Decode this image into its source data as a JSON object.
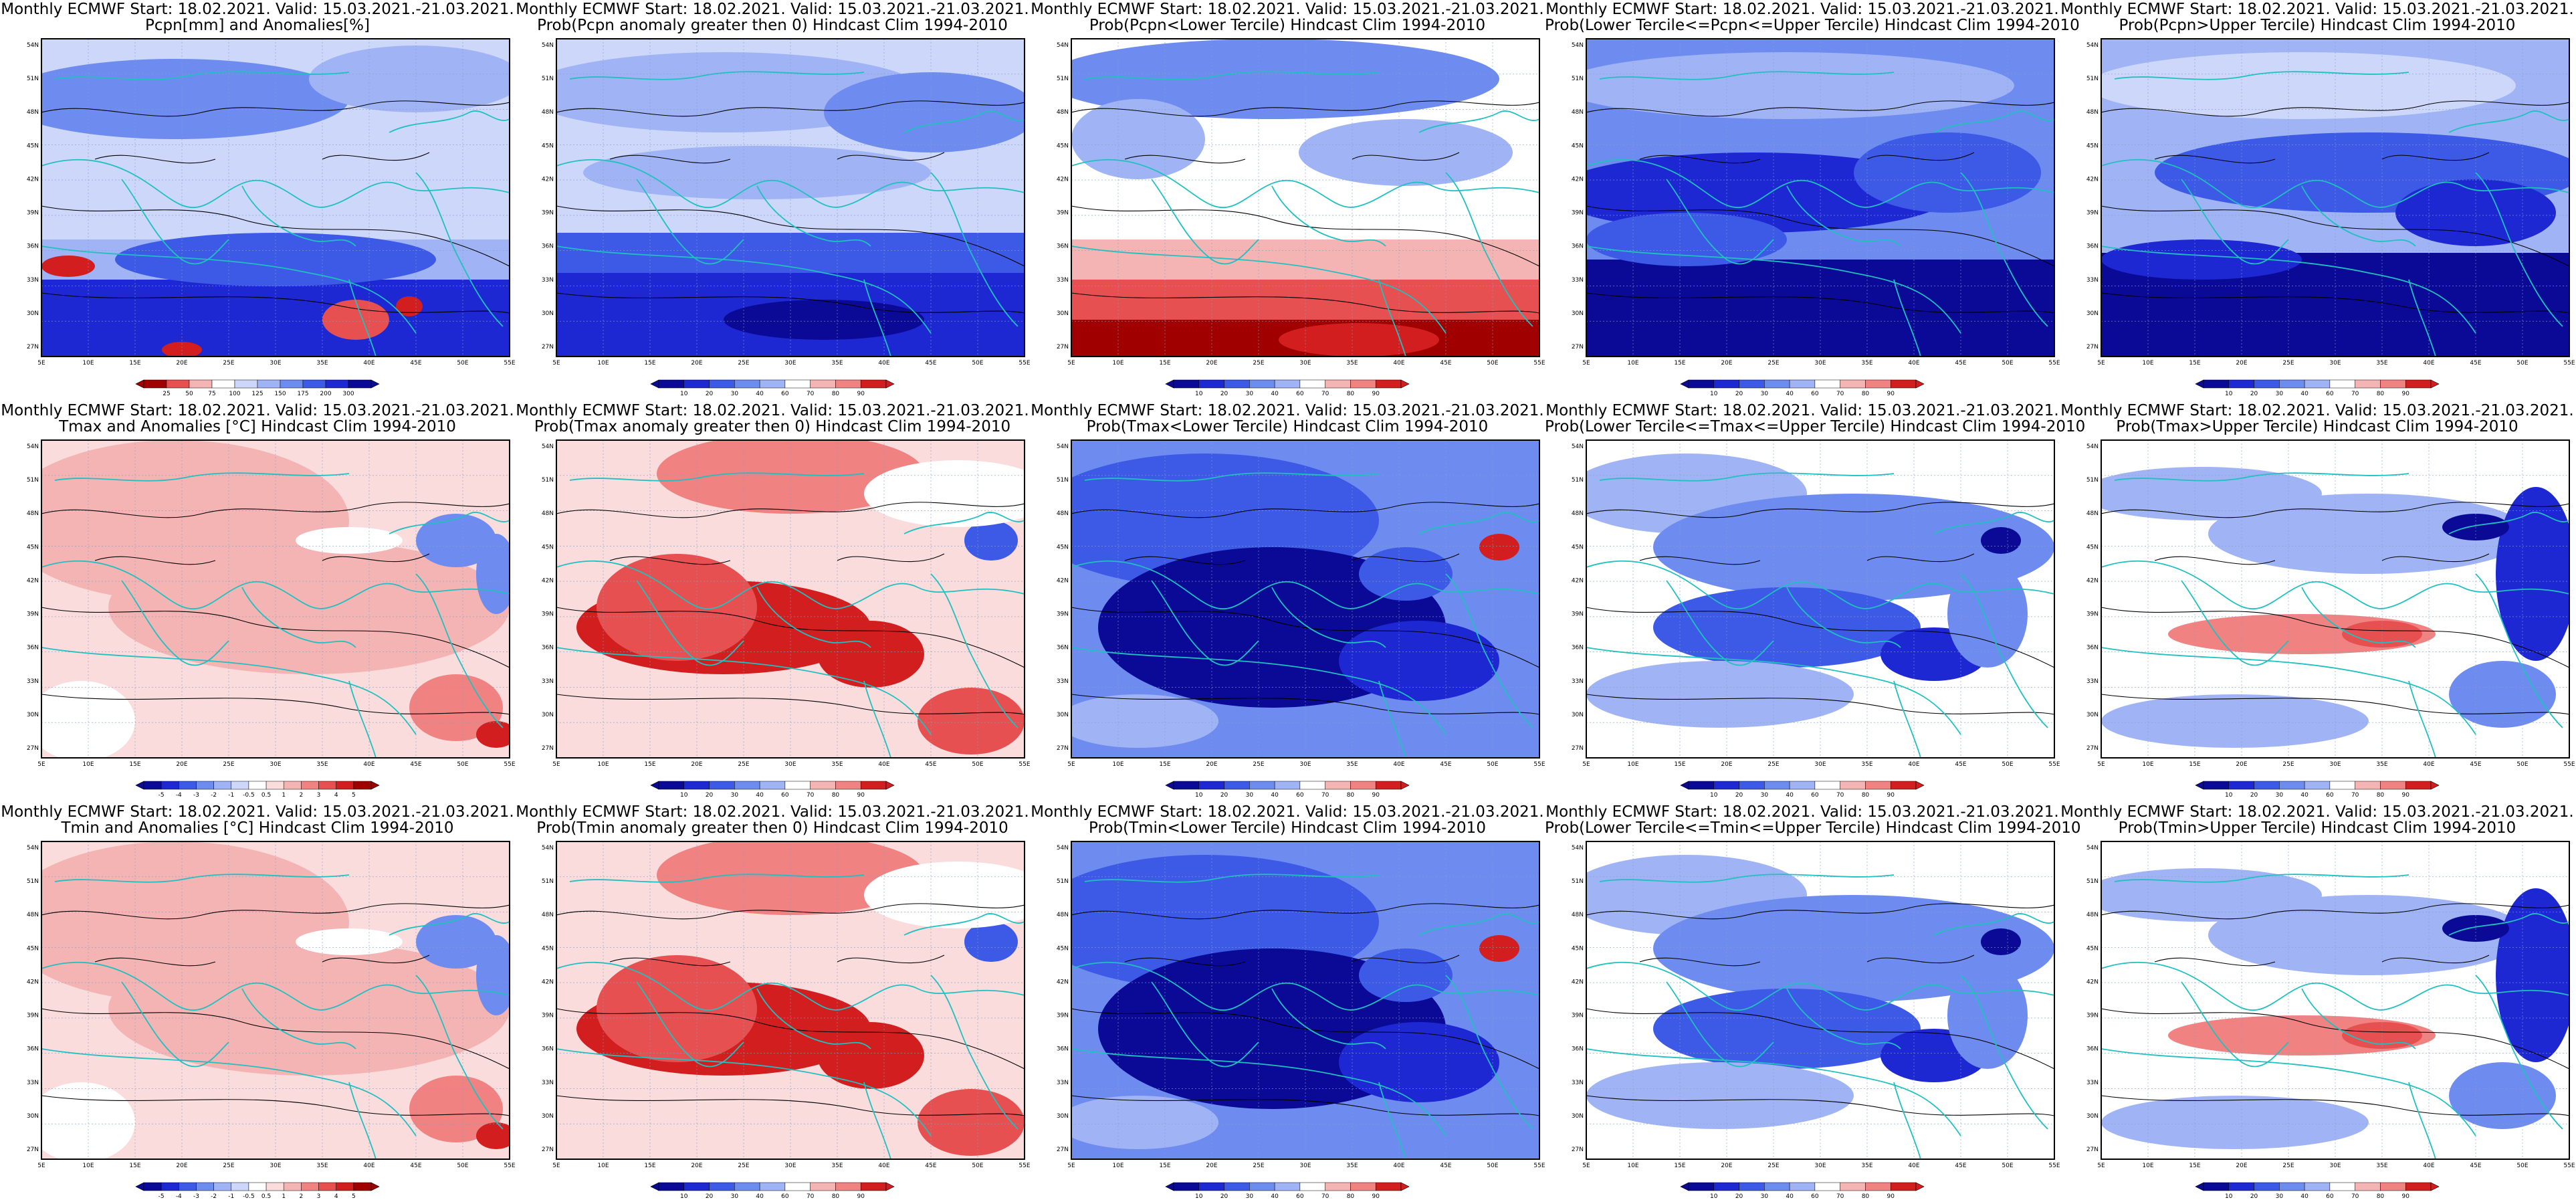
{
  "header_prefix": "Monthly ECMWF Start: 18.02.2021. Valid: 15.03.2021.-21.03.2021.",
  "lat_labels": [
    "54N",
    "51N",
    "48N",
    "45N",
    "42N",
    "39N",
    "36N",
    "33N",
    "30N",
    "27N"
  ],
  "lon_labels": [
    "5E",
    "10E",
    "15E",
    "20E",
    "25E",
    "30E",
    "35E",
    "40E",
    "45E",
    "50E",
    "55E"
  ],
  "colorbar_anom_pcpn": [
    "25",
    "50",
    "75",
    "100",
    "125",
    "150",
    "175",
    "200",
    "300"
  ],
  "colorbar_anom_temp": [
    "-5",
    "-4",
    "-3",
    "-2",
    "-1",
    "-0.5",
    "0.5",
    "1",
    "2",
    "3",
    "4",
    "5"
  ],
  "colorbar_prob": [
    "10",
    "20",
    "30",
    "40",
    "60",
    "70",
    "80",
    "90"
  ],
  "colors": {
    "blue_scale": [
      "#0a0a96",
      "#1e28d2",
      "#3c5ae6",
      "#6e8cf0",
      "#a0b4f5",
      "#cdd7fa"
    ],
    "red_scale": [
      "#fadcdc",
      "#f5b4b4",
      "#f08282",
      "#e65050",
      "#d21e1e",
      "#a00000"
    ],
    "coast": "#20c0c0",
    "contour": "#000000"
  },
  "panels": [
    {
      "title2": "Pcpn[mm] and Anomalies[%]",
      "scheme": "pcpn",
      "cbar": "anom_pcpn"
    },
    {
      "title2": "Prob(Pcpn anomaly greater then 0) Hindcast Clim 1994-2010",
      "scheme": "pcpn_prob",
      "cbar": "prob"
    },
    {
      "title2": "Prob(Pcpn<Lower Tercile) Hindcast Clim 1994-2010",
      "scheme": "pcpn_low",
      "cbar": "prob"
    },
    {
      "title2": "Prob(Lower Tercile<=Pcpn<=Upper Tercile) Hindcast Clim 1994-2010",
      "scheme": "pcpn_mid",
      "cbar": "prob"
    },
    {
      "title2": "Prob(Pcpn>Upper Tercile) Hindcast Clim 1994-2010",
      "scheme": "pcpn_up",
      "cbar": "prob"
    },
    {
      "title2": "Tmax and Anomalies [°C] Hindcast Clim 1994-2010",
      "scheme": "t_anom",
      "cbar": "anom_temp"
    },
    {
      "title2": "Prob(Tmax anomaly greater then 0) Hindcast Clim 1994-2010",
      "scheme": "t_prob",
      "cbar": "prob"
    },
    {
      "title2": "Prob(Tmax<Lower Tercile) Hindcast Clim 1994-2010",
      "scheme": "t_low",
      "cbar": "prob"
    },
    {
      "title2": "Prob(Lower Tercile<=Tmax<=Upper Tercile) Hindcast Clim 1994-2010",
      "scheme": "t_mid",
      "cbar": "prob"
    },
    {
      "title2": "Prob(Tmax>Upper Tercile) Hindcast Clim 1994-2010",
      "scheme": "t_up",
      "cbar": "prob"
    },
    {
      "title2": "Tmin and Anomalies [°C] Hindcast Clim 1994-2010",
      "scheme": "t_anom",
      "cbar": "anom_temp"
    },
    {
      "title2": "Prob(Tmin anomaly greater then 0) Hindcast Clim 1994-2010",
      "scheme": "t_prob",
      "cbar": "prob"
    },
    {
      "title2": "Prob(Tmin<Lower Tercile) Hindcast Clim 1994-2010",
      "scheme": "t_low",
      "cbar": "prob"
    },
    {
      "title2": "Prob(Lower Tercile<=Tmin<=Upper Tercile) Hindcast Clim 1994-2010",
      "scheme": "t_mid",
      "cbar": "prob"
    },
    {
      "title2": "Prob(Tmin>Upper Tercile) Hindcast Clim 1994-2010",
      "scheme": "t_up",
      "cbar": "prob"
    }
  ]
}
